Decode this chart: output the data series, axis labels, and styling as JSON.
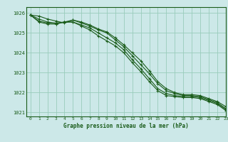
{
  "title": "Graphe pression niveau de la mer (hPa)",
  "bg_color": "#cce8e8",
  "grid_color": "#99ccbb",
  "line_color": "#1a5c1a",
  "xlim": [
    -0.5,
    23
  ],
  "ylim": [
    1020.8,
    1026.3
  ],
  "yticks": [
    1021,
    1022,
    1023,
    1024,
    1025,
    1026
  ],
  "xticks": [
    0,
    1,
    2,
    3,
    4,
    5,
    6,
    7,
    8,
    9,
    10,
    11,
    12,
    13,
    14,
    15,
    16,
    17,
    18,
    19,
    20,
    21,
    22,
    23
  ],
  "series": [
    [
      1025.9,
      1025.85,
      1025.7,
      1025.6,
      1025.5,
      1025.65,
      1025.55,
      1025.4,
      1025.2,
      1025.05,
      1024.75,
      1024.4,
      1024.0,
      1023.6,
      1023.1,
      1022.55,
      1022.2,
      1022.0,
      1021.9,
      1021.9,
      1021.85,
      1021.7,
      1021.55,
      1021.3
    ],
    [
      1025.9,
      1025.7,
      1025.55,
      1025.5,
      1025.55,
      1025.65,
      1025.5,
      1025.35,
      1025.15,
      1025.0,
      1024.65,
      1024.3,
      1023.85,
      1023.4,
      1022.95,
      1022.45,
      1022.1,
      1021.95,
      1021.85,
      1021.85,
      1021.8,
      1021.65,
      1021.5,
      1021.2
    ],
    [
      1025.9,
      1025.6,
      1025.5,
      1025.45,
      1025.55,
      1025.55,
      1025.4,
      1025.25,
      1025.0,
      1024.75,
      1024.5,
      1024.15,
      1023.65,
      1023.2,
      1022.7,
      1022.2,
      1021.95,
      1021.85,
      1021.8,
      1021.8,
      1021.75,
      1021.6,
      1021.45,
      1021.15
    ],
    [
      1025.9,
      1025.55,
      1025.45,
      1025.45,
      1025.55,
      1025.55,
      1025.35,
      1025.15,
      1024.85,
      1024.6,
      1024.35,
      1024.0,
      1023.5,
      1023.05,
      1022.55,
      1022.1,
      1021.85,
      1021.8,
      1021.75,
      1021.75,
      1021.7,
      1021.55,
      1021.4,
      1021.1
    ]
  ]
}
